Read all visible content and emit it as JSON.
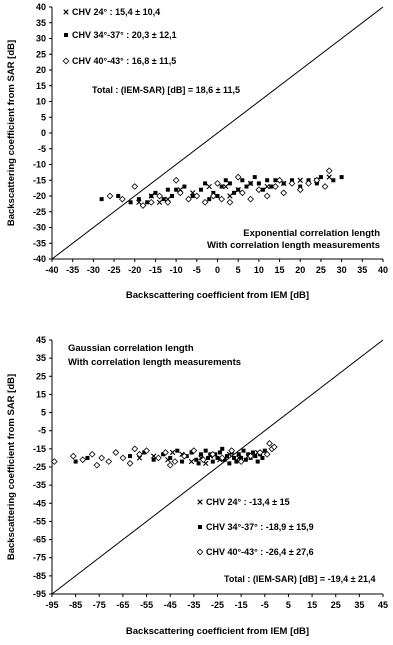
{
  "chart_data": [
    {
      "type": "scatter",
      "xlabel": "Backscattering coefficient from IEM [dB]",
      "ylabel": "Backscattering coefficient from SAR [dB]",
      "xlim": [
        -40,
        40
      ],
      "ylim": [
        -40,
        40
      ],
      "xticks": [
        "-40",
        "-35",
        "-30",
        "-25",
        "-20",
        "-15",
        "-10",
        "-5",
        "0",
        "5",
        "10",
        "15",
        "20",
        "25",
        "30",
        "35",
        "40"
      ],
      "yticks": [
        "40",
        "35",
        "30",
        "25",
        "20",
        "15",
        "10",
        "5",
        "0",
        "-5",
        "-10",
        "-15",
        "-20",
        "-25",
        "-30",
        "-35",
        "-40"
      ],
      "annotation_lines": [
        "Exponential correlation length",
        "With correlation length measurements"
      ],
      "total_text": "Total : (IEM-SAR) [dB] = 18,6 ± 11,5",
      "diagonal": [
        [
          -40,
          -40
        ],
        [
          40,
          40
        ]
      ],
      "series": [
        {
          "name": "CHV 24° : 15,4 ± 10,4",
          "marker": "x",
          "points": [
            [
              -19,
              -22
            ],
            [
              -16,
              -20
            ],
            [
              -12,
              -21
            ],
            [
              -6,
              -19
            ],
            [
              -2,
              -17
            ],
            [
              2,
              -17
            ],
            [
              5,
              -18
            ],
            [
              8,
              -16
            ],
            [
              12,
              -17
            ],
            [
              16,
              -16
            ],
            [
              20,
              -15
            ],
            [
              24,
              -15
            ],
            [
              3,
              -20
            ],
            [
              -9,
              -18
            ],
            [
              27,
              -14
            ],
            [
              -14,
              -22
            ]
          ]
        },
        {
          "name": "CHV 34°-37° : 20,3 ± 12,1",
          "marker": "square",
          "points": [
            [
              -28,
              -21
            ],
            [
              -24,
              -20
            ],
            [
              -21,
              -22
            ],
            [
              -19,
              -21
            ],
            [
              -17,
              -22
            ],
            [
              -15,
              -19
            ],
            [
              -13,
              -21
            ],
            [
              -11,
              -20
            ],
            [
              -10,
              -18
            ],
            [
              -8,
              -17
            ],
            [
              -6,
              -20
            ],
            [
              -4,
              -18
            ],
            [
              -3,
              -16
            ],
            [
              -1,
              -19
            ],
            [
              1,
              -17
            ],
            [
              2,
              -15
            ],
            [
              3,
              -16
            ],
            [
              4,
              -19
            ],
            [
              5,
              -18
            ],
            [
              6,
              -15
            ],
            [
              7,
              -17
            ],
            [
              8,
              -16
            ],
            [
              9,
              -14
            ],
            [
              10,
              -16
            ],
            [
              11,
              -18
            ],
            [
              12,
              -15
            ],
            [
              13,
              -17
            ],
            [
              14,
              -15
            ],
            [
              16,
              -16
            ],
            [
              18,
              -15
            ],
            [
              20,
              -17
            ],
            [
              22,
              -15
            ],
            [
              24,
              -16
            ],
            [
              25,
              -14
            ],
            [
              28,
              -15
            ],
            [
              30,
              -14
            ],
            [
              0,
              -20
            ],
            [
              -2,
              -21
            ],
            [
              -12,
              -18
            ],
            [
              -16,
              -20
            ]
          ]
        },
        {
          "name": "CHV 40°-43° : 16,8 ± 11,5",
          "marker": "diamond",
          "points": [
            [
              -26,
              -20
            ],
            [
              -23,
              -21
            ],
            [
              -20,
              -17
            ],
            [
              -18,
              -23
            ],
            [
              -16,
              -22
            ],
            [
              -14,
              -20
            ],
            [
              -12,
              -22
            ],
            [
              -9,
              -19
            ],
            [
              -7,
              -21
            ],
            [
              -5,
              -20
            ],
            [
              -3,
              -22
            ],
            [
              -1,
              -20
            ],
            [
              1,
              -21
            ],
            [
              3,
              -22
            ],
            [
              6,
              -19
            ],
            [
              8,
              -21
            ],
            [
              10,
              -18
            ],
            [
              12,
              -20
            ],
            [
              14,
              -17
            ],
            [
              16,
              -19
            ],
            [
              18,
              -16
            ],
            [
              20,
              -18
            ],
            [
              22,
              -16
            ],
            [
              24,
              -15
            ],
            [
              26,
              -17
            ],
            [
              27,
              -12
            ],
            [
              0,
              -16
            ],
            [
              -10,
              -15
            ],
            [
              15,
              -15
            ],
            [
              5,
              -14
            ]
          ]
        }
      ]
    },
    {
      "type": "scatter",
      "xlabel": "Backscattering coefficient from IEM [dB]",
      "ylabel": "Backscattering coefficient from SAR [dB]",
      "xlim": [
        -95,
        45
      ],
      "ylim": [
        -95,
        45
      ],
      "xticks": [
        "-95",
        "-85",
        "-75",
        "-65",
        "-55",
        "-45",
        "-35",
        "-25",
        "-15",
        "-5",
        "5",
        "15",
        "25",
        "35",
        "45"
      ],
      "yticks": [
        "45",
        "35",
        "25",
        "15",
        "5",
        "-5",
        "-15",
        "-25",
        "-35",
        "-45",
        "-55",
        "-65",
        "-75",
        "-85",
        "-95"
      ],
      "annotation_lines": [
        "Gaussian correlation length",
        "With correlation length measurements"
      ],
      "total_text": "Total : (IEM-SAR) [dB] = -19,4 ± 21,4",
      "diagonal": [
        [
          -95,
          -95
        ],
        [
          45,
          45
        ]
      ],
      "series": [
        {
          "name": "CHV 24° : -13,4 ± 15",
          "marker": "x",
          "points": [
            [
              -58,
              -20
            ],
            [
              -52,
              -19
            ],
            [
              -46,
              -21
            ],
            [
              -40,
              -18
            ],
            [
              -36,
              -22
            ],
            [
              -32,
              -20
            ],
            [
              -28,
              -19
            ],
            [
              -24,
              -21
            ],
            [
              -20,
              -18
            ],
            [
              -16,
              -20
            ],
            [
              -12,
              -19
            ],
            [
              -8,
              -17
            ],
            [
              -44,
              -17
            ],
            [
              -30,
              -23
            ]
          ]
        },
        {
          "name": "CHV 34°-37° : -18,9 ± 15,9",
          "marker": "square",
          "points": [
            [
              -85,
              -22
            ],
            [
              -80,
              -20
            ],
            [
              -62,
              -19
            ],
            [
              -56,
              -17
            ],
            [
              -52,
              -21
            ],
            [
              -48,
              -18
            ],
            [
              -45,
              -20
            ],
            [
              -42,
              -16
            ],
            [
              -40,
              -22
            ],
            [
              -38,
              -19
            ],
            [
              -36,
              -17
            ],
            [
              -34,
              -21
            ],
            [
              -32,
              -18
            ],
            [
              -30,
              -16
            ],
            [
              -29,
              -20
            ],
            [
              -27,
              -22
            ],
            [
              -26,
              -18
            ],
            [
              -25,
              -20
            ],
            [
              -24,
              -17
            ],
            [
              -22,
              -21
            ],
            [
              -21,
              -19
            ],
            [
              -20,
              -23
            ],
            [
              -19,
              -17
            ],
            [
              -18,
              -20
            ],
            [
              -17,
              -22
            ],
            [
              -16,
              -18
            ],
            [
              -15,
              -20
            ],
            [
              -14,
              -16
            ],
            [
              -13,
              -21
            ],
            [
              -12,
              -18
            ],
            [
              -11,
              -20
            ],
            [
              -10,
              -17
            ],
            [
              -9,
              -19
            ],
            [
              -8,
              -22
            ],
            [
              -7,
              -18
            ],
            [
              -6,
              -20
            ],
            [
              -5,
              -16
            ],
            [
              -33,
              -23
            ],
            [
              -23,
              -15
            ],
            [
              -28,
              -18
            ]
          ]
        },
        {
          "name": "CHV 40°-43° : -26,4 ± 27,6",
          "marker": "diamond",
          "points": [
            [
              -94,
              -22
            ],
            [
              -86,
              -19
            ],
            [
              -82,
              -21
            ],
            [
              -78,
              -18
            ],
            [
              -74,
              -20
            ],
            [
              -71,
              -22
            ],
            [
              -68,
              -17
            ],
            [
              -65,
              -20
            ],
            [
              -62,
              -23
            ],
            [
              -58,
              -18
            ],
            [
              -55,
              -16
            ],
            [
              -50,
              -20
            ],
            [
              -47,
              -17
            ],
            [
              -43,
              -22
            ],
            [
              -39,
              -19
            ],
            [
              -35,
              -16
            ],
            [
              -31,
              -21
            ],
            [
              -27,
              -18
            ],
            [
              -23,
              -20
            ],
            [
              -19,
              -16
            ],
            [
              -15,
              -22
            ],
            [
              -11,
              -19
            ],
            [
              -7,
              -17
            ],
            [
              -4,
              -18
            ],
            [
              -2,
              -15
            ],
            [
              -1,
              -14
            ],
            [
              -3,
              -12
            ],
            [
              -60,
              -15
            ],
            [
              -76,
              -24
            ],
            [
              -45,
              -24
            ]
          ]
        }
      ]
    }
  ]
}
